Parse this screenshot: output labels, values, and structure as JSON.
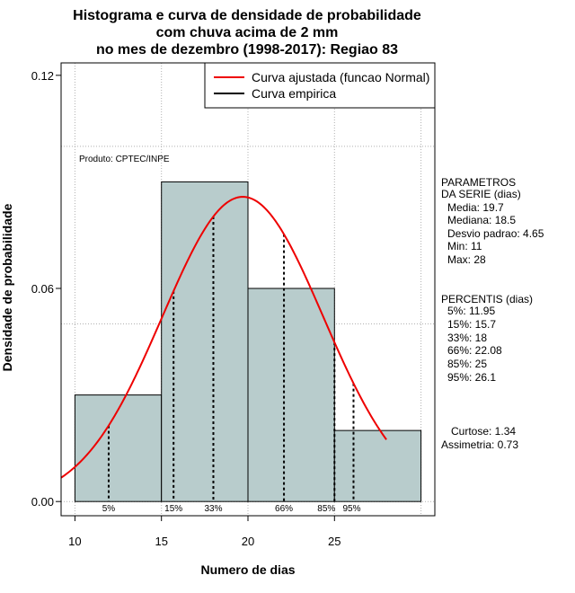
{
  "title": {
    "line1": "Histograma e curva de densidade de probabilidade",
    "line2": "com chuva acima de 2 mm",
    "line3": "no mes de dezembro (1998-2017): Regiao 83"
  },
  "product_note": "Produto: CPTEC/INPE",
  "legend": {
    "fitted": "Curva ajustada (funcao Normal)",
    "empirical": "Curva empirica"
  },
  "parameters": {
    "heading1": "PARAMETROS",
    "heading2": "DA SERIE (dias)",
    "media": "Media: 19.7",
    "mediana": "Mediana: 18.5",
    "desvio": "Desvio padrao: 4.65",
    "min": "Min: 11",
    "max": "Max: 28"
  },
  "percentiles": {
    "heading": "PERCENTIS (dias)",
    "p5": "5%: 11.95",
    "p15": "15%: 15.7",
    "p33": "33%: 18",
    "p66": "66%: 22.08",
    "p85": "85%: 25",
    "p95": "95%: 26.1"
  },
  "shape": {
    "curtose": "Curtose: 1.34",
    "assimetria": "Assimetria: 0.73"
  },
  "colors": {
    "bar_fill": "#b8cccc",
    "curve": "#ee0000",
    "grid": "#b0b0b0"
  },
  "chart_data": {
    "type": "bar",
    "title": "Histograma e curva de densidade de probabilidade com chuva acima de 2 mm no mes de dezembro (1998-2017): Regiao 83",
    "xlabel": "Numero de dias",
    "ylabel": "Densidade de probabilidade",
    "xlim": [
      9.2,
      30.8
    ],
    "ylim": [
      -0.004,
      0.1235
    ],
    "x_ticks": [
      10,
      15,
      20,
      25
    ],
    "y_ticks": [
      0.0,
      0.06,
      0.12
    ],
    "y_tick_labels": [
      "0.00",
      "0.06",
      "0.12"
    ],
    "grid": true,
    "legend_position": "top-right",
    "bins": [
      {
        "from": 10,
        "to": 15,
        "density": 0.03
      },
      {
        "from": 15,
        "to": 20,
        "density": 0.09
      },
      {
        "from": 20,
        "to": 25,
        "density": 0.06
      },
      {
        "from": 25,
        "to": 30,
        "density": 0.02
      }
    ],
    "normal_fit": {
      "mean": 19.7,
      "sd": 4.65,
      "x_from": 9.2,
      "x_to": 28.0
    },
    "percentiles": [
      {
        "label": "5%",
        "x": 11.95
      },
      {
        "label": "15%",
        "x": 15.7
      },
      {
        "label": "33%",
        "x": 18.0
      },
      {
        "label": "66%",
        "x": 22.08
      },
      {
        "label": "85%",
        "x": 25.0
      },
      {
        "label": "95%",
        "x": 26.1
      }
    ]
  }
}
